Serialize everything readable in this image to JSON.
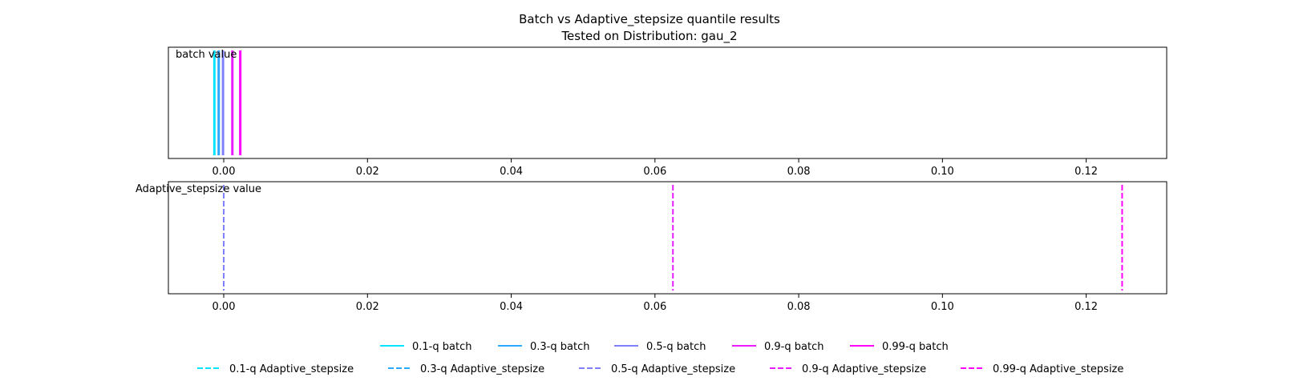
{
  "chart_data": {
    "type": "line",
    "title": "Batch vs Adaptive_stepsize quantile results",
    "subtitle": "Tested on Distribution: gau_2",
    "xlim": [
      -0.0077,
      0.1312
    ],
    "xticks": [
      0.0,
      0.02,
      0.04,
      0.06,
      0.08,
      0.1,
      0.12
    ],
    "xtick_labels": [
      "0.00",
      "0.02",
      "0.04",
      "0.06",
      "0.08",
      "0.10",
      "0.12"
    ],
    "grid": false,
    "legend_position": "bottom",
    "panels": [
      {
        "label": "batch value",
        "style": "solid",
        "series": [
          {
            "name": "0.1-q batch",
            "color": "#00e5ff",
            "value": -0.0013
          },
          {
            "name": "0.3-q batch",
            "color": "#2ba9ff",
            "value": -0.0007
          },
          {
            "name": "0.5-q batch",
            "color": "#8080ff",
            "value": -0.0001
          },
          {
            "name": "0.9-q batch",
            "color": "#e91cff",
            "value": 0.0012
          },
          {
            "name": "0.99-q batch",
            "color": "#ff00ff",
            "value": 0.0023
          }
        ]
      },
      {
        "label": "Adaptive_stepsize value",
        "style": "dashed",
        "series": [
          {
            "name": "0.1-q Adaptive_stepsize",
            "color": "#00e5ff",
            "value": 0.0
          },
          {
            "name": "0.3-q Adaptive_stepsize",
            "color": "#2ba9ff",
            "value": 0.0
          },
          {
            "name": "0.5-q Adaptive_stepsize",
            "color": "#8080ff",
            "value": 0.0
          },
          {
            "name": "0.9-q Adaptive_stepsize",
            "color": "#e91cff",
            "value": 0.0625
          },
          {
            "name": "0.99-q Adaptive_stepsize",
            "color": "#ff00ff",
            "value": 0.125
          }
        ]
      }
    ]
  }
}
